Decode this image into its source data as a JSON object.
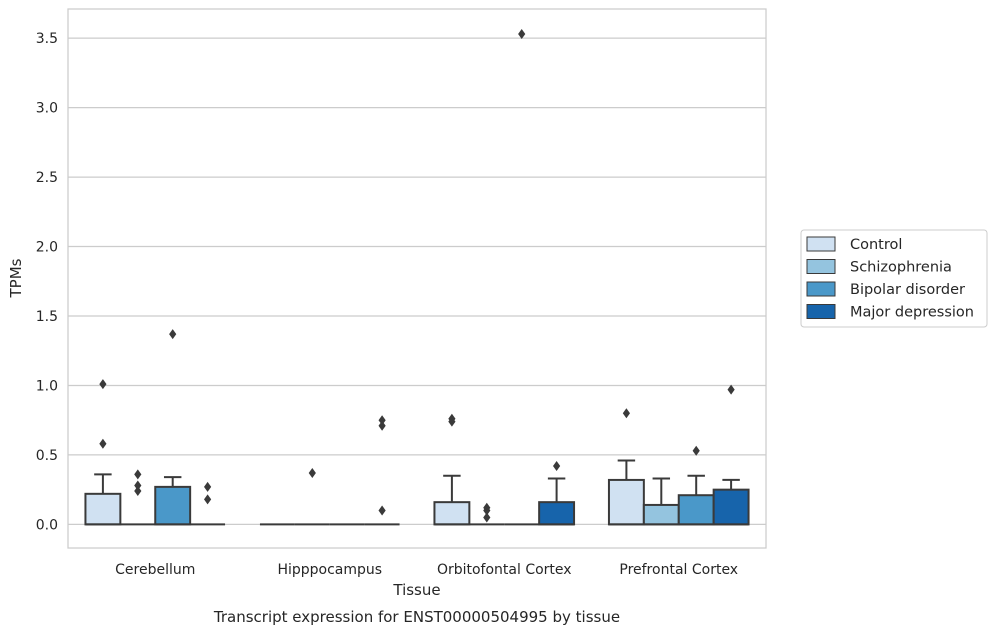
{
  "chart_data": {
    "type": "box",
    "title": "",
    "caption": "Transcript expression for ENST00000504995 by tissue",
    "xlabel": "Tissue",
    "ylabel": "TPMs",
    "ylim": [
      -0.17,
      3.71
    ],
    "yticks": [
      0.0,
      0.5,
      1.0,
      1.5,
      2.0,
      2.5,
      3.0,
      3.5
    ],
    "ytick_labels": [
      "0.0",
      "0.5",
      "1.0",
      "1.5",
      "2.0",
      "2.5",
      "3.0",
      "3.5"
    ],
    "grid": "horizontal",
    "legend_position": "right",
    "categories": [
      "Cerebellum",
      "Hipppocampus",
      "Orbitofontal Cortex",
      "Prefrontal Cortex"
    ],
    "series": [
      {
        "name": "Control",
        "color": "#d0e1f2",
        "boxes": [
          {
            "q1": 0.0,
            "median": 0.0,
            "q3": 0.22,
            "whisker_low": 0.0,
            "whisker_high": 0.36,
            "outliers": [
              0.58,
              1.01
            ]
          },
          {
            "q1": 0.0,
            "median": 0.0,
            "q3": 0.0,
            "whisker_low": 0.0,
            "whisker_high": 0.0,
            "outliers": []
          },
          {
            "q1": 0.0,
            "median": 0.0,
            "q3": 0.16,
            "whisker_low": 0.0,
            "whisker_high": 0.35,
            "outliers": [
              0.74,
              0.76
            ]
          },
          {
            "q1": 0.0,
            "median": 0.0,
            "q3": 0.32,
            "whisker_low": 0.0,
            "whisker_high": 0.46,
            "outliers": [
              0.8
            ]
          }
        ]
      },
      {
        "name": "Schizophrenia",
        "color": "#94c4df",
        "boxes": [
          {
            "q1": 0.0,
            "median": 0.0,
            "q3": 0.0,
            "whisker_low": 0.0,
            "whisker_high": 0.0,
            "outliers": [
              0.24,
              0.28,
              0.36
            ]
          },
          {
            "q1": 0.0,
            "median": 0.0,
            "q3": 0.0,
            "whisker_low": 0.0,
            "whisker_high": 0.0,
            "outliers": [
              0.37
            ]
          },
          {
            "q1": 0.0,
            "median": 0.0,
            "q3": 0.0,
            "whisker_low": 0.0,
            "whisker_high": 0.0,
            "outliers": [
              0.05,
              0.1,
              0.12
            ]
          },
          {
            "q1": 0.0,
            "median": 0.0,
            "q3": 0.14,
            "whisker_low": 0.0,
            "whisker_high": 0.33,
            "outliers": []
          }
        ]
      },
      {
        "name": "Bipolar disorder",
        "color": "#4a98c9",
        "boxes": [
          {
            "q1": 0.0,
            "median": 0.0,
            "q3": 0.27,
            "whisker_low": 0.0,
            "whisker_high": 0.34,
            "outliers": [
              1.37
            ]
          },
          {
            "q1": 0.0,
            "median": 0.0,
            "q3": 0.0,
            "whisker_low": 0.0,
            "whisker_high": 0.0,
            "outliers": []
          },
          {
            "q1": 0.0,
            "median": 0.0,
            "q3": 0.0,
            "whisker_low": 0.0,
            "whisker_high": 0.0,
            "outliers": [
              3.53
            ]
          },
          {
            "q1": 0.0,
            "median": 0.0,
            "q3": 0.21,
            "whisker_low": 0.0,
            "whisker_high": 0.35,
            "outliers": [
              0.53
            ]
          }
        ]
      },
      {
        "name": "Major depression",
        "color": "#1764ab",
        "boxes": [
          {
            "q1": 0.0,
            "median": 0.0,
            "q3": 0.0,
            "whisker_low": 0.0,
            "whisker_high": 0.0,
            "outliers": [
              0.18,
              0.27
            ]
          },
          {
            "q1": 0.0,
            "median": 0.0,
            "q3": 0.0,
            "whisker_low": 0.0,
            "whisker_high": 0.0,
            "outliers": [
              0.1,
              0.71,
              0.75
            ]
          },
          {
            "q1": 0.0,
            "median": 0.0,
            "q3": 0.16,
            "whisker_low": 0.0,
            "whisker_high": 0.33,
            "outliers": [
              0.42
            ]
          },
          {
            "q1": 0.0,
            "median": 0.0,
            "q3": 0.25,
            "whisker_low": 0.0,
            "whisker_high": 0.32,
            "outliers": [
              0.97
            ]
          }
        ]
      }
    ]
  }
}
